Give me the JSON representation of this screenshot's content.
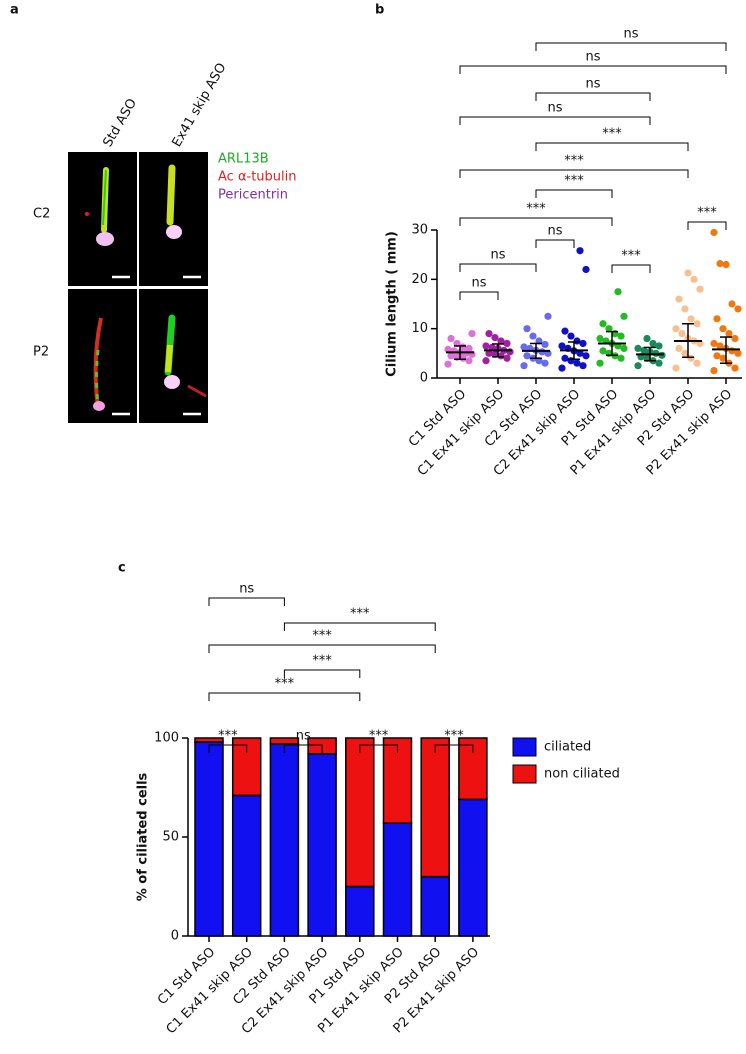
{
  "panel_a": {
    "label": "a",
    "columns": [
      "Std ASO",
      "Ex41 skip ASO"
    ],
    "rows": [
      "C2",
      "P2"
    ],
    "legend": [
      {
        "text": "ARL13B",
        "color": "#22aa22"
      },
      {
        "text": "Ac α-tubulin",
        "color": "#e02020"
      },
      {
        "text": "Pericentrin",
        "color": "#8030a0"
      }
    ]
  },
  "chart_data": [
    {
      "type": "strip",
      "panel_label": "b",
      "y_label": "Cilium length ( mm)",
      "ylim": [
        0,
        30
      ],
      "yticks": [
        0,
        10,
        20,
        30
      ],
      "series": [
        {
          "name": "C1 Std ASO",
          "color": "#e070d8",
          "center": 5.2,
          "lower": 3.8,
          "upper": 6.5,
          "values": [
            2.8,
            3.5,
            4,
            4.2,
            4.5,
            4.8,
            5,
            5.2,
            5.5,
            5.8,
            6,
            6.3,
            7,
            8,
            9
          ]
        },
        {
          "name": "C1 Ex41 skip ASO",
          "color": "#a020a0",
          "center": 5.6,
          "lower": 4.3,
          "upper": 6.9,
          "values": [
            3.5,
            4,
            4.5,
            4.8,
            5,
            5.3,
            5.6,
            6,
            6.2,
            6.5,
            7,
            7.5,
            8.2,
            9
          ]
        },
        {
          "name": "C2 Std ASO",
          "color": "#6a6aee",
          "center": 5.5,
          "lower": 4,
          "upper": 7,
          "values": [
            2.5,
            3,
            3.5,
            4,
            4.5,
            5,
            5.3,
            5.6,
            6,
            6.3,
            6.8,
            7.5,
            8.5,
            10,
            12.5
          ]
        },
        {
          "name": "C2 Ex41 skip ASO",
          "color": "#1010c8",
          "center": 5.6,
          "lower": 3.8,
          "upper": 7.3,
          "values": [
            2,
            2.5,
            3,
            3.5,
            4,
            4.5,
            5,
            5.5,
            6,
            6.5,
            7,
            7.5,
            8.5,
            9.5,
            22,
            25.8
          ]
        },
        {
          "name": "P1 Std ASO",
          "color": "#22bb22",
          "center": 7,
          "lower": 4.6,
          "upper": 9.4,
          "values": [
            3,
            4,
            4.5,
            5,
            5.5,
            6,
            6.5,
            7,
            7.5,
            8,
            8.5,
            9,
            10,
            11,
            12.5,
            17.5
          ]
        },
        {
          "name": "P1 Ex41 skip ASO",
          "color": "#1a8a5a",
          "center": 4.8,
          "lower": 3.5,
          "upper": 6.2,
          "values": [
            2.5,
            3,
            3.5,
            4,
            4.3,
            4.6,
            5,
            5.3,
            5.6,
            6,
            6.5,
            7,
            8
          ]
        },
        {
          "name": "P2 Std ASO",
          "color": "#f8c090",
          "center": 7.5,
          "lower": 4.2,
          "upper": 11,
          "values": [
            2,
            3,
            4,
            5,
            6,
            7,
            7.5,
            8,
            9,
            10,
            11,
            12,
            14,
            16,
            18,
            20,
            21.3
          ]
        },
        {
          "name": "P2 Ex41 skip ASO",
          "color": "#f07810",
          "center": 5.8,
          "lower": 3,
          "upper": 8.3,
          "values": [
            1.5,
            2,
            3,
            4,
            4.5,
            5,
            5.5,
            6,
            6.5,
            7,
            8,
            9,
            10,
            12,
            14,
            15,
            23,
            23.2,
            29.5
          ]
        }
      ],
      "brackets": [
        {
          "from": 0,
          "to": 1,
          "label": "ns"
        },
        {
          "from": 2,
          "to": 3,
          "label": "ns"
        },
        {
          "from": 0,
          "to": 2,
          "label": "ns"
        },
        {
          "from": 4,
          "to": 5,
          "label": "***"
        },
        {
          "from": 6,
          "to": 7,
          "label": "***"
        },
        {
          "from": 0,
          "to": 4,
          "label": "***"
        },
        {
          "from": 2,
          "to": 4,
          "label": "***"
        },
        {
          "from": 0,
          "to": 6,
          "label": "***"
        },
        {
          "from": 2,
          "to": 6,
          "label": "***"
        },
        {
          "from": 0,
          "to": 5,
          "label": "ns"
        },
        {
          "from": 2,
          "to": 5,
          "label": "ns"
        },
        {
          "from": 0,
          "to": 7,
          "label": "ns"
        },
        {
          "from": 2,
          "to": 7,
          "label": "ns"
        }
      ]
    },
    {
      "type": "stacked_bar",
      "panel_label": "c",
      "y_label": "% of ciliated cells",
      "categories": [
        "C1 Std ASO",
        "C1 Ex41 skip ASO",
        "C2 Std ASO",
        "C2 Ex41 skip ASO",
        "P1 Std ASO",
        "P1 Ex41 skip ASO",
        "P2 Std ASO",
        "P2 Ex41 skip ASO"
      ],
      "ylim": [
        0,
        100
      ],
      "yticks": [
        0,
        50,
        100
      ],
      "legend": "right",
      "series": [
        {
          "name": "ciliated",
          "color": "#1010f0",
          "values": [
            98,
            71,
            97,
            92,
            25,
            57,
            30,
            69
          ]
        },
        {
          "name": "non ciliated",
          "color": "#ee1111",
          "values": [
            2,
            29,
            3,
            8,
            75,
            43,
            70,
            31
          ]
        }
      ],
      "brackets": [
        {
          "from": 0,
          "to": 1,
          "label": "***"
        },
        {
          "from": 2,
          "to": 3,
          "label": "ns"
        },
        {
          "from": 4,
          "to": 5,
          "label": "***"
        },
        {
          "from": 6,
          "to": 7,
          "label": "***"
        },
        {
          "from": 0,
          "to": 4,
          "label": "***"
        },
        {
          "from": 2,
          "to": 4,
          "label": "***"
        },
        {
          "from": 0,
          "to": 6,
          "label": "***"
        },
        {
          "from": 2,
          "to": 6,
          "label": "***"
        },
        {
          "from": 0,
          "to": 2,
          "label": "ns"
        }
      ]
    }
  ]
}
